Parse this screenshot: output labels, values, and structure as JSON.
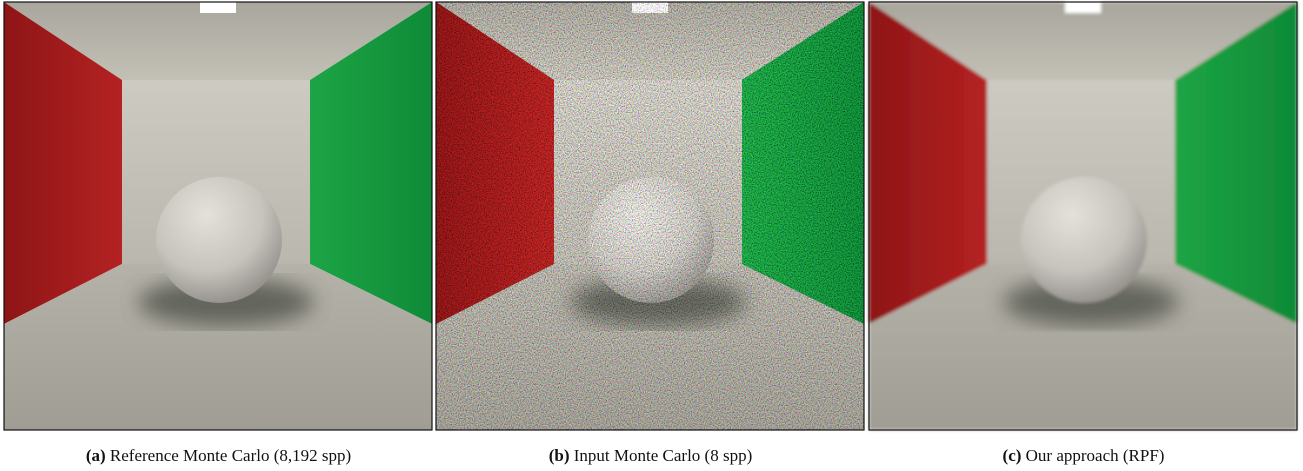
{
  "panels": [
    {
      "label": "(a)",
      "caption": "Reference Monte Carlo (8,192 spp)"
    },
    {
      "label": "(b)",
      "caption": "Input Monte Carlo (8 spp)"
    },
    {
      "label": "(c)",
      "caption": "Our approach (RPF)"
    }
  ]
}
